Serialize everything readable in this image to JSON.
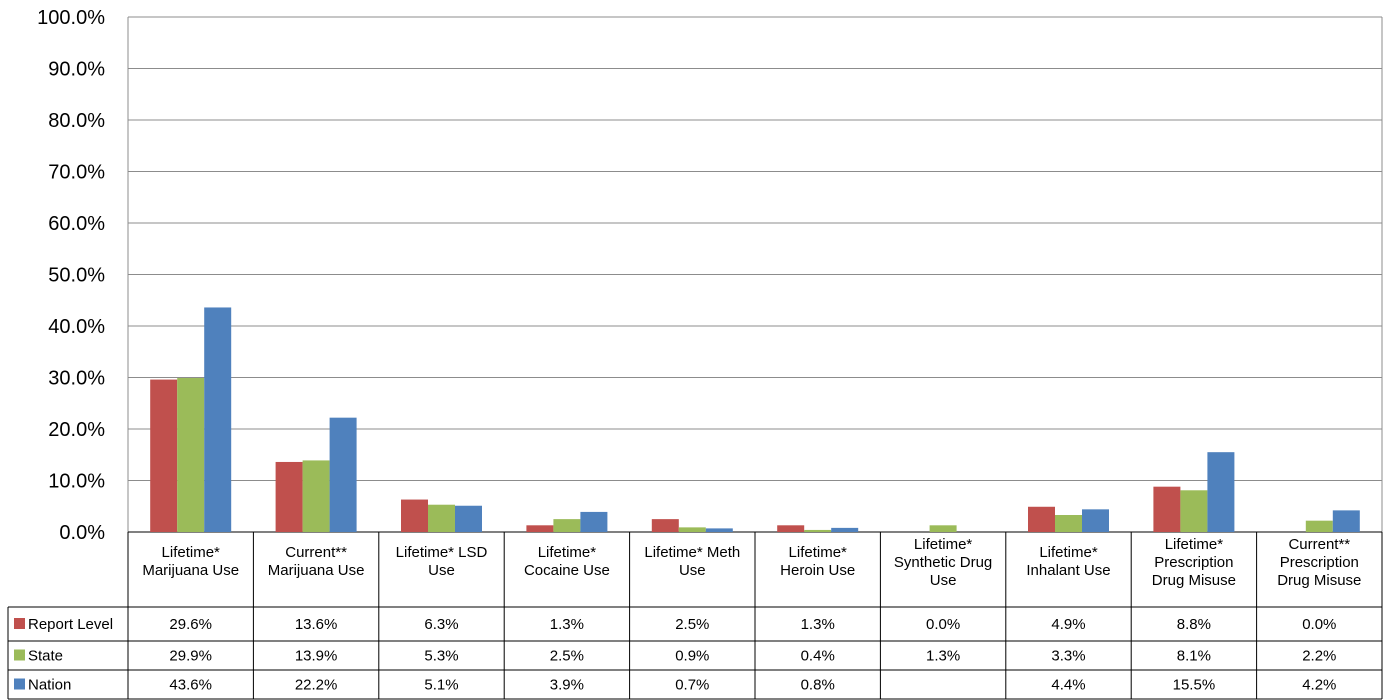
{
  "chart_data": {
    "type": "bar",
    "categories": [
      [
        "Lifetime*",
        "Marijuana Use"
      ],
      [
        "Current**",
        "Marijuana Use"
      ],
      [
        "Lifetime* LSD",
        "Use"
      ],
      [
        "Lifetime*",
        "Cocaine Use"
      ],
      [
        "Lifetime* Meth",
        "Use"
      ],
      [
        "Lifetime*",
        "Heroin Use"
      ],
      [
        "Lifetime*",
        "Synthetic Drug",
        "Use"
      ],
      [
        "Lifetime*",
        "Inhalant Use"
      ],
      [
        "Lifetime*",
        "Prescription",
        "Drug Misuse"
      ],
      [
        "Current**",
        "Prescription",
        "Drug Misuse"
      ]
    ],
    "series": [
      {
        "name": "Report Level",
        "color": "#c0504d",
        "values": [
          29.6,
          13.6,
          6.3,
          1.3,
          2.5,
          1.3,
          0.0,
          4.9,
          8.8,
          0.0
        ],
        "labels": [
          "29.6%",
          "13.6%",
          "6.3%",
          "1.3%",
          "2.5%",
          "1.3%",
          "0.0%",
          "4.9%",
          "8.8%",
          "0.0%"
        ]
      },
      {
        "name": "State",
        "color": "#9bbb59",
        "values": [
          29.9,
          13.9,
          5.3,
          2.5,
          0.9,
          0.4,
          1.3,
          3.3,
          8.1,
          2.2
        ],
        "labels": [
          "29.9%",
          "13.9%",
          "5.3%",
          "2.5%",
          "0.9%",
          "0.4%",
          "1.3%",
          "3.3%",
          "8.1%",
          "2.2%"
        ]
      },
      {
        "name": "Nation",
        "color": "#4f81bd",
        "values": [
          43.6,
          22.2,
          5.1,
          3.9,
          0.7,
          0.8,
          null,
          4.4,
          15.5,
          4.2
        ],
        "labels": [
          "43.6%",
          "22.2%",
          "5.1%",
          "3.9%",
          "0.7%",
          "0.8%",
          "",
          "4.4%",
          "15.5%",
          "4.2%"
        ]
      }
    ],
    "yticks": [
      "0.0%",
      "10.0%",
      "20.0%",
      "30.0%",
      "40.0%",
      "50.0%",
      "60.0%",
      "70.0%",
      "80.0%",
      "90.0%",
      "100.0%"
    ],
    "ylim": [
      0,
      100
    ],
    "grid": true,
    "legend": "data-table-left",
    "title": "",
    "xlabel": "",
    "ylabel": ""
  }
}
